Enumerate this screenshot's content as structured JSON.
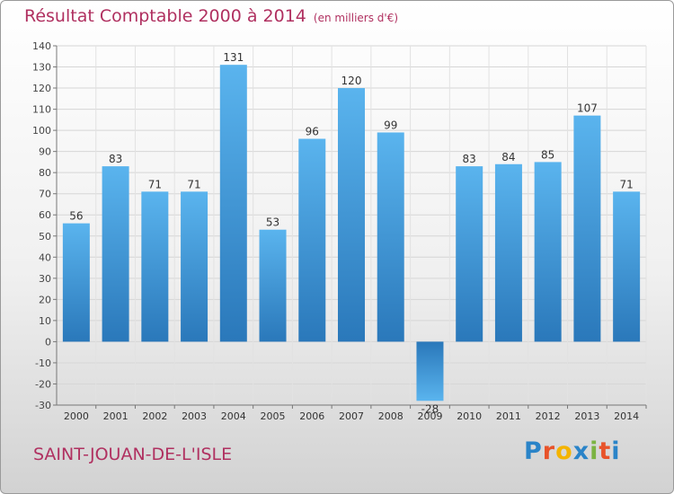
{
  "title": "Résultat Comptable 2000 à 2014",
  "unit": "(en milliers d'€)",
  "commune": "SAINT-JOUAN-DE-L'ISLE",
  "logo": {
    "letters": [
      "P",
      "r",
      "o",
      "x",
      "i",
      "t",
      "i"
    ],
    "colors": [
      "#2a84c8",
      "#e8532a",
      "#f4b400",
      "#2a84c8",
      "#7cb342",
      "#e8532a",
      "#2a84c8"
    ]
  },
  "colors": {
    "title": "#b03060",
    "bar": "#4a9fe0"
  },
  "chart_data": {
    "type": "bar",
    "title": "Résultat Comptable 2000 à 2014",
    "xlabel": "",
    "ylabel": "",
    "categories": [
      "2000",
      "2001",
      "2002",
      "2003",
      "2004",
      "2005",
      "2006",
      "2007",
      "2008",
      "2009",
      "2010",
      "2011",
      "2012",
      "2013",
      "2014"
    ],
    "values": [
      56,
      83,
      71,
      71,
      131,
      53,
      96,
      120,
      99,
      -28,
      83,
      84,
      85,
      107,
      71
    ],
    "ylim": [
      -30,
      140
    ],
    "yticks": [
      -30,
      -20,
      -10,
      0,
      10,
      20,
      30,
      40,
      50,
      60,
      70,
      80,
      90,
      100,
      110,
      120,
      130,
      140
    ],
    "grid": true,
    "legend": "none"
  }
}
